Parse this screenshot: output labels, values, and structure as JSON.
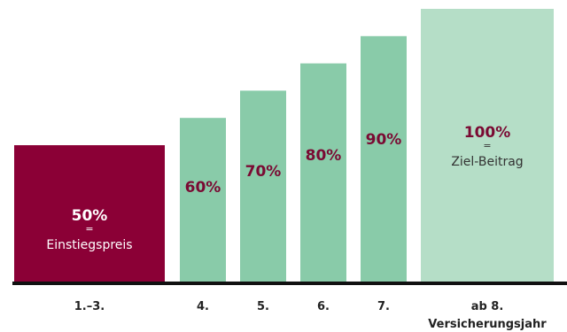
{
  "chart_data": {
    "type": "bar",
    "categories": [
      "1.–3.",
      "4.",
      "5.",
      "6.",
      "7.",
      "ab 8.\nVersicherungsjahr"
    ],
    "values": [
      50,
      60,
      70,
      80,
      90,
      100
    ],
    "value_labels": [
      "50%",
      "60%",
      "70%",
      "80%",
      "90%",
      "100%"
    ],
    "annotations": {
      "first": {
        "equals": "=",
        "text": "Einstiegspreis"
      },
      "last": {
        "equals": "=",
        "text": "Ziel-Beitrag"
      }
    },
    "ylim": [
      0,
      100
    ],
    "grid": false,
    "legend": "none",
    "colors": {
      "first_bar": "#8b0036",
      "middle_bars": "#89cba9",
      "last_bar": "#b5dec7",
      "label_on_dark": "#ffffff",
      "label_on_light": "#7a0a33",
      "baseline": "#111111"
    }
  }
}
